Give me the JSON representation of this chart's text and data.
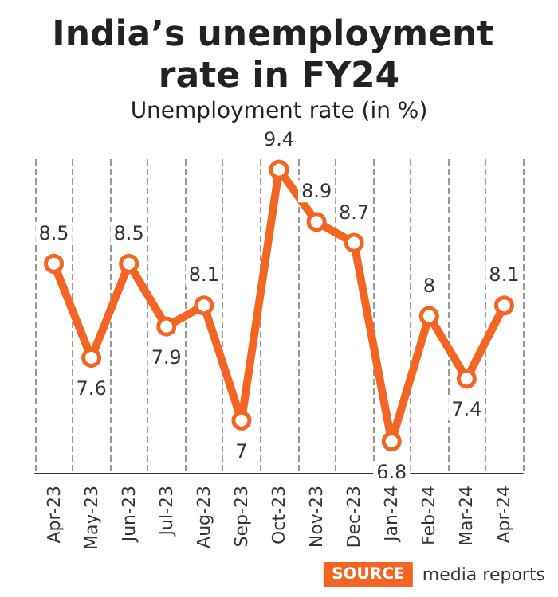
{
  "chart_data": {
    "type": "line",
    "title": "India’s unemployment rate in FY24",
    "subtitle": "Unemployment rate (in %)",
    "categories": [
      "Apr-23",
      "May-23",
      "Jun-23",
      "Jul-23",
      "Aug-23",
      "Sep-23",
      "Oct-23",
      "Nov-23",
      "Dec-23",
      "Jan-24",
      "Feb-24",
      "Mar-24",
      "Apr-24"
    ],
    "series": [
      {
        "color": "#f26522",
        "values": [
          8.5,
          7.6,
          8.5,
          7.9,
          8.1,
          7,
          9.4,
          8.9,
          8.7,
          6.8,
          8,
          7.4,
          8.1
        ]
      }
    ],
    "data_labels": true,
    "marker": "circle",
    "line_style": "solid",
    "grid": "x",
    "annotations": [
      "SOURCE",
      "media reports"
    ]
  }
}
